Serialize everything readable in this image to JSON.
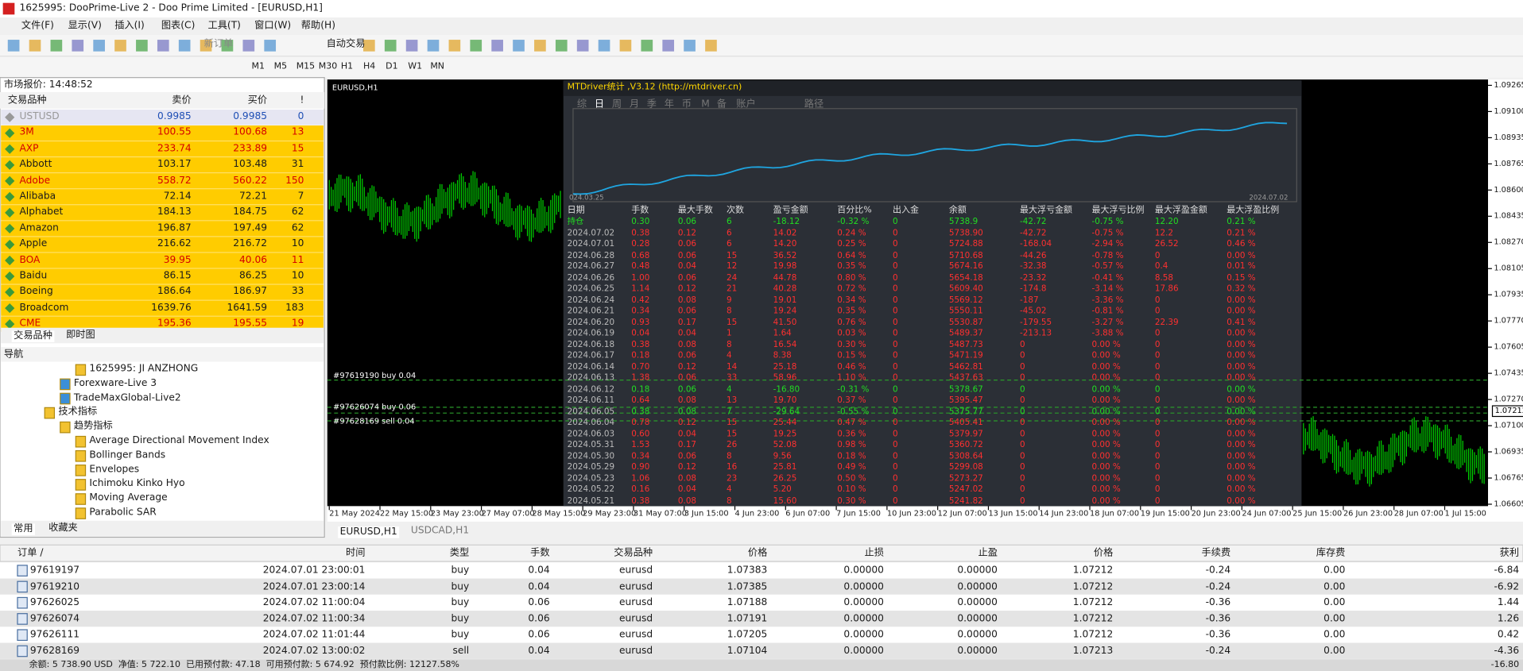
{
  "window": {
    "title": "1625995: DooPrime-Live 2 - Doo Prime Limited - [EURUSD,H1]",
    "menu": [
      "文件(F)",
      "显示(V)",
      "插入(I)",
      "图表(C)",
      "工具(T)",
      "窗口(W)",
      "帮助(H)"
    ]
  },
  "toolbar": {
    "buttons": [
      "新订单",
      "自动交易"
    ],
    "timeframes": [
      "M1",
      "M5",
      "M15",
      "M30",
      "H1",
      "H4",
      "D1",
      "W1",
      "MN"
    ]
  },
  "market_watch": {
    "title": "市场报价: 14:48:52",
    "columns": [
      "交易品种",
      "卖价",
      "买价",
      "!"
    ],
    "rows": [
      {
        "symbol": "USTUSD",
        "bid": "0.9985",
        "ask": "0.9985",
        "spread": "0",
        "color": "#1f4fb5"
      },
      {
        "symbol": "3M",
        "bid": "100.55",
        "ask": "100.68",
        "spread": "13",
        "color": "#d40000"
      },
      {
        "symbol": "AXP",
        "bid": "233.74",
        "ask": "233.89",
        "spread": "15",
        "color": "#d40000"
      },
      {
        "symbol": "Abbott",
        "bid": "103.17",
        "ask": "103.48",
        "spread": "31",
        "color": "#1a1a1a"
      },
      {
        "symbol": "Adobe",
        "bid": "558.72",
        "ask": "560.22",
        "spread": "150",
        "color": "#d40000"
      },
      {
        "symbol": "Alibaba",
        "bid": "72.14",
        "ask": "72.21",
        "spread": "7",
        "color": "#1a1a1a"
      },
      {
        "symbol": "Alphabet",
        "bid": "184.13",
        "ask": "184.75",
        "spread": "62",
        "color": "#1a1a1a"
      },
      {
        "symbol": "Amazon",
        "bid": "196.87",
        "ask": "197.49",
        "spread": "62",
        "color": "#1a1a1a"
      },
      {
        "symbol": "Apple",
        "bid": "216.62",
        "ask": "216.72",
        "spread": "10",
        "color": "#1a1a1a"
      },
      {
        "symbol": "BOA",
        "bid": "39.95",
        "ask": "40.06",
        "spread": "11",
        "color": "#d40000"
      },
      {
        "symbol": "Baidu",
        "bid": "86.15",
        "ask": "86.25",
        "spread": "10",
        "color": "#1a1a1a"
      },
      {
        "symbol": "Boeing",
        "bid": "186.64",
        "ask": "186.97",
        "spread": "33",
        "color": "#1a1a1a"
      },
      {
        "symbol": "Broadcom",
        "bid": "1639.76",
        "ask": "1641.59",
        "spread": "183",
        "color": "#1a1a1a"
      },
      {
        "symbol": "CME",
        "bid": "195.36",
        "ask": "195.55",
        "spread": "19",
        "color": "#d40000"
      }
    ],
    "tabs": [
      "交易品种",
      "即时图"
    ]
  },
  "navigator": {
    "title": "导航",
    "items": [
      "1625995: JI ANZHONG",
      "Forexware-Live 3",
      "TradeMaxGlobal-Live2",
      "技术指标",
      "趋势指标",
      "Average Directional Movement Index",
      "Bollinger Bands",
      "Envelopes",
      "Ichimoku Kinko Hyo",
      "Moving Average",
      "Parabolic SAR"
    ],
    "tabs": [
      "常用",
      "收藏夹"
    ]
  },
  "chart": {
    "label": "EURUSD,H1",
    "price_axis": [
      "1.09265",
      "1.09100",
      "1.08935",
      "1.08765",
      "1.08600",
      "1.08435",
      "1.08270",
      "1.08105",
      "1.07935",
      "1.07770",
      "1.07605",
      "1.07435",
      "1.07270",
      "1.07100",
      "1.06935",
      "1.06765",
      "1.06605"
    ],
    "current_price": "1.07212",
    "time_axis": [
      "21 May 2024",
      "22 May 15:00",
      "23 May 23:00",
      "27 May 07:00",
      "28 May 15:00",
      "29 May 23:00",
      "31 May 07:00",
      "3 Jun 15:00",
      "4 Jun 23:00",
      "6 Jun 07:00",
      "7 Jun 15:00",
      "10 Jun 23:00",
      "12 Jun 07:00",
      "13 Jun 15:00",
      "14 Jun 23:00",
      "18 Jun 07:00",
      "19 Jun 15:00",
      "20 Jun 23:00",
      "24 Jun 07:00",
      "25 Jun 15:00",
      "26 Jun 23:00",
      "28 Jun 07:00",
      "1 Jul 15:00"
    ],
    "order_lines": [
      "#97619190 buy 0.04",
      "#97626074 buy 0.06",
      "#97628169 sell 0.04"
    ],
    "tabs": [
      "EURUSD,H1",
      "USDCAD,H1"
    ]
  },
  "mtdriver": {
    "title": "MTDriver统计 ,V3.12 (http://mtdriver.cn)",
    "tabs": [
      "综",
      "日",
      "周",
      "月",
      "季",
      "年",
      "币",
      "M",
      "备",
      "账户",
      "路径"
    ],
    "curve_start": "024.03.25",
    "curve_end": "2024.07.02",
    "columns": [
      "日期",
      "手数",
      "最大手数",
      "次数",
      "盈亏金额",
      "百分比%",
      "出入金",
      "余额",
      "最大浮亏金额",
      "最大浮亏比例",
      "最大浮盈金额",
      "最大浮盈比例"
    ],
    "rows": [
      [
        "持仓",
        "0.30",
        "0.06",
        "6",
        "-18.12",
        "-0.32 %",
        "0",
        "5738.9",
        "-42.72",
        "-0.75 %",
        "12.20",
        "0.21 %"
      ],
      [
        "2024.07.02",
        "0.38",
        "0.12",
        "6",
        "14.02",
        "0.24 %",
        "0",
        "5738.90",
        "-42.72",
        "-0.75 %",
        "12.2",
        "0.21 %"
      ],
      [
        "2024.07.01",
        "0.28",
        "0.06",
        "6",
        "14.20",
        "0.25 %",
        "0",
        "5724.88",
        "-168.04",
        "-2.94 %",
        "26.52",
        "0.46 %"
      ],
      [
        "2024.06.28",
        "0.68",
        "0.06",
        "15",
        "36.52",
        "0.64 %",
        "0",
        "5710.68",
        "-44.26",
        "-0.78 %",
        "0",
        "0.00 %"
      ],
      [
        "2024.06.27",
        "0.48",
        "0.04",
        "12",
        "19.98",
        "0.35 %",
        "0",
        "5674.16",
        "-32.38",
        "-0.57 %",
        "0.4",
        "0.01 %"
      ],
      [
        "2024.06.26",
        "1.00",
        "0.06",
        "24",
        "44.78",
        "0.80 %",
        "0",
        "5654.18",
        "-23.32",
        "-0.41 %",
        "8.58",
        "0.15 %"
      ],
      [
        "2024.06.25",
        "1.14",
        "0.12",
        "21",
        "40.28",
        "0.72 %",
        "0",
        "5609.40",
        "-174.8",
        "-3.14 %",
        "17.86",
        "0.32 %"
      ],
      [
        "2024.06.24",
        "0.42",
        "0.08",
        "9",
        "19.01",
        "0.34 %",
        "0",
        "5569.12",
        "-187",
        "-3.36 %",
        "0",
        "0.00 %"
      ],
      [
        "2024.06.21",
        "0.34",
        "0.06",
        "8",
        "19.24",
        "0.35 %",
        "0",
        "5550.11",
        "-45.02",
        "-0.81 %",
        "0",
        "0.00 %"
      ],
      [
        "2024.06.20",
        "0.93",
        "0.17",
        "15",
        "41.50",
        "0.76 %",
        "0",
        "5530.87",
        "-179.55",
        "-3.27 %",
        "22.39",
        "0.41 %"
      ],
      [
        "2024.06.19",
        "0.04",
        "0.04",
        "1",
        "1.64",
        "0.03 %",
        "0",
        "5489.37",
        "-213.13",
        "-3.88 %",
        "0",
        "0.00 %"
      ],
      [
        "2024.06.18",
        "0.38",
        "0.08",
        "8",
        "16.54",
        "0.30 %",
        "0",
        "5487.73",
        "0",
        "0.00 %",
        "0",
        "0.00 %"
      ],
      [
        "2024.06.17",
        "0.18",
        "0.06",
        "4",
        "8.38",
        "0.15 %",
        "0",
        "5471.19",
        "0",
        "0.00 %",
        "0",
        "0.00 %"
      ],
      [
        "2024.06.14",
        "0.70",
        "0.12",
        "14",
        "25.18",
        "0.46 %",
        "0",
        "5462.81",
        "0",
        "0.00 %",
        "0",
        "0.00 %"
      ],
      [
        "2024.06.13",
        "1.38",
        "0.06",
        "33",
        "58.96",
        "1.10 %",
        "0",
        "5437.63",
        "0",
        "0.00 %",
        "0",
        "0.00 %"
      ],
      [
        "2024.06.12",
        "0.18",
        "0.06",
        "4",
        "-16.80",
        "-0.31 %",
        "0",
        "5378.67",
        "0",
        "0.00 %",
        "0",
        "0.00 %"
      ],
      [
        "2024.06.11",
        "0.64",
        "0.08",
        "13",
        "19.70",
        "0.37 %",
        "0",
        "5395.47",
        "0",
        "0.00 %",
        "0",
        "0.00 %"
      ],
      [
        "2024.06.05",
        "0.38",
        "0.08",
        "7",
        "-29.64",
        "-0.55 %",
        "0",
        "5375.77",
        "0",
        "0.00 %",
        "0",
        "0.00 %"
      ],
      [
        "2024.06.04",
        "0.78",
        "0.12",
        "15",
        "25.44",
        "0.47 %",
        "0",
        "5405.41",
        "0",
        "0.00 %",
        "0",
        "0.00 %"
      ],
      [
        "2024.06.03",
        "0.60",
        "0.04",
        "15",
        "19.25",
        "0.36 %",
        "0",
        "5379.97",
        "0",
        "0.00 %",
        "0",
        "0.00 %"
      ],
      [
        "2024.05.31",
        "1.53",
        "0.17",
        "26",
        "52.08",
        "0.98 %",
        "0",
        "5360.72",
        "0",
        "0.00 %",
        "0",
        "0.00 %"
      ],
      [
        "2024.05.30",
        "0.34",
        "0.06",
        "8",
        "9.56",
        "0.18 %",
        "0",
        "5308.64",
        "0",
        "0.00 %",
        "0",
        "0.00 %"
      ],
      [
        "2024.05.29",
        "0.90",
        "0.12",
        "16",
        "25.81",
        "0.49 %",
        "0",
        "5299.08",
        "0",
        "0.00 %",
        "0",
        "0.00 %"
      ],
      [
        "2024.05.23",
        "1.06",
        "0.08",
        "23",
        "26.25",
        "0.50 %",
        "0",
        "5273.27",
        "0",
        "0.00 %",
        "0",
        "0.00 %"
      ],
      [
        "2024.05.22",
        "0.16",
        "0.04",
        "4",
        "5.20",
        "0.10 %",
        "0",
        "5247.02",
        "0",
        "0.00 %",
        "0",
        "0.00 %"
      ],
      [
        "2024.05.21",
        "0.38",
        "0.08",
        "8",
        "15.60",
        "0.30 %",
        "0",
        "5241.82",
        "0",
        "0.00 %",
        "0",
        "0.00 %"
      ]
    ]
  },
  "orders": {
    "columns": [
      "订单 /",
      "时间",
      "类型",
      "手数",
      "交易品种",
      "价格",
      "止损",
      "止盈",
      "价格",
      "手续费",
      "库存费",
      "获利"
    ],
    "rows": [
      [
        "97619197",
        "2024.07.01 23:00:01",
        "buy",
        "0.04",
        "eurusd",
        "1.07383",
        "0.00000",
        "0.00000",
        "1.07212",
        "-0.24",
        "0.00",
        "-6.84"
      ],
      [
        "97619210",
        "2024.07.01 23:00:14",
        "buy",
        "0.04",
        "eurusd",
        "1.07385",
        "0.00000",
        "0.00000",
        "1.07212",
        "-0.24",
        "0.00",
        "-6.92"
      ],
      [
        "97626025",
        "2024.07.02 11:00:04",
        "buy",
        "0.06",
        "eurusd",
        "1.07188",
        "0.00000",
        "0.00000",
        "1.07212",
        "-0.36",
        "0.00",
        "1.44"
      ],
      [
        "97626074",
        "2024.07.02 11:00:34",
        "buy",
        "0.06",
        "eurusd",
        "1.07191",
        "0.00000",
        "0.00000",
        "1.07212",
        "-0.36",
        "0.00",
        "1.26"
      ],
      [
        "97626111",
        "2024.07.02 11:01:44",
        "buy",
        "0.06",
        "eurusd",
        "1.07205",
        "0.00000",
        "0.00000",
        "1.07212",
        "-0.36",
        "0.00",
        "0.42"
      ],
      [
        "97628169",
        "2024.07.02 13:00:02",
        "sell",
        "0.04",
        "eurusd",
        "1.07104",
        "0.00000",
        "0.00000",
        "1.07213",
        "-0.24",
        "0.00",
        "-4.36"
      ]
    ]
  },
  "status": {
    "text": "余额: 5 738.90 USD  净值: 5 722.10  已用预付款: 47.18  可用预付款: 5 674.92  预付款比例: 12127.58%",
    "total": "-16.80"
  }
}
